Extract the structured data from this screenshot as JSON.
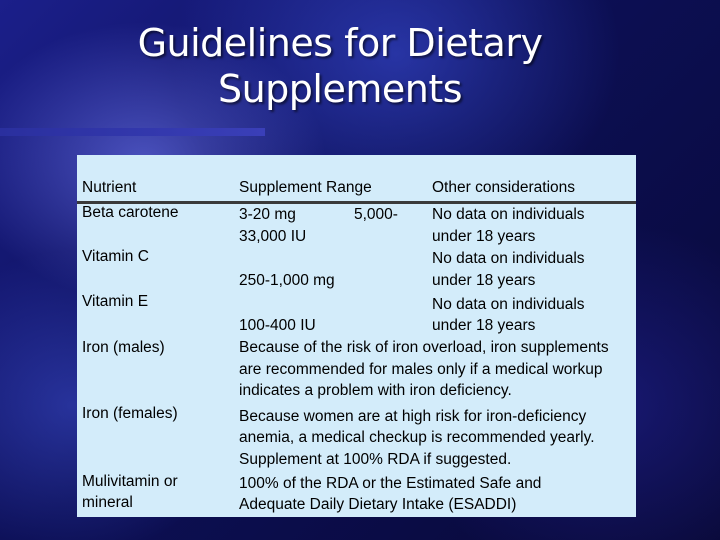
{
  "slide": {
    "title_line1": "Guidelines for Dietary",
    "title_line2": "Supplements"
  },
  "table": {
    "headers": {
      "nutrient": "Nutrient",
      "range": "Supplement Range",
      "other": "Other considerations"
    },
    "rows": {
      "beta": {
        "nutrient": "Beta carotene",
        "range_a": "3-20 mg",
        "range_b": "5,000-",
        "range_c": "33,000 IU",
        "other_1": "No data on individuals",
        "other_2": "under 18 years"
      },
      "vitc": {
        "nutrient": "Vitamin C",
        "range": "250-1,000 mg",
        "other_1": "No data on individuals",
        "other_2": "under 18 years"
      },
      "vite": {
        "nutrient": "Vitamin E",
        "range": "100-400 IU",
        "other_1": "No data on individuals",
        "other_2": "under 18 years"
      },
      "iron_m": {
        "nutrient": "Iron (males)",
        "line1": "Because of the risk of iron overload, iron supplements",
        "line2": "are recommended for males only if a medical workup",
        "line3": "indicates a problem with iron deficiency."
      },
      "iron_f": {
        "nutrient": "Iron (females)",
        "line1": "Because women are at high risk for iron-deficiency",
        "line2": "anemia, a medical checkup is recommended yearly.",
        "line3": "Supplement at 100% RDA if suggested."
      },
      "multi": {
        "nutrient_1": "Mulivitamin or",
        "nutrient_2": "mineral",
        "line1": "100% of the RDA or the Estimated Safe and",
        "line2": "Adequate Daily Dietary Intake (ESADDI)"
      }
    }
  }
}
